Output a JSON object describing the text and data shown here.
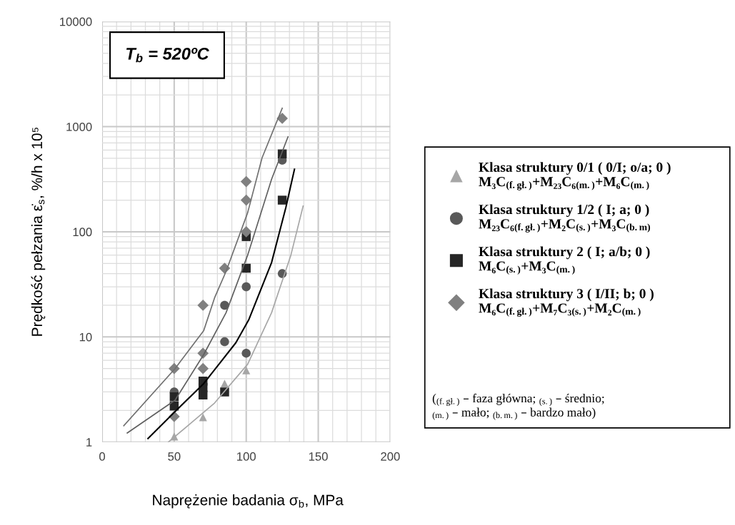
{
  "chart_data": {
    "type": "scatter",
    "xlabel": "Naprężenie badania σ$_{b}$, MPa",
    "ylabel": "Prędkość pełzania ε̇$_{s}$, %/h x 10⁵",
    "annotations": [
      "T$_{b}$ = 520ºC",
      "($_{(f.gł.)}$ – faza główna; $_{(s.)}$ – średnio;\n$_{(m.)}$ – mało; $_{(b.m.)}$ – bardzo mało)"
    ],
    "xlim": [
      0,
      200
    ],
    "xticks": [
      0,
      50,
      100,
      150,
      200
    ],
    "ylim": [
      1,
      10000
    ],
    "yticks": [
      1,
      10,
      100,
      1000,
      10000
    ],
    "log": "y",
    "grid": true,
    "legend": "right",
    "series": [
      {
        "name": "Klasa struktury 0/1 ( 0/I; o/a; 0 )\nM₃C$_{(f.gł.)}$+M₂₃C₆$_{(m.)}$+M₆C$_{(m.)}$",
        "color": "#a6a6a6",
        "marker": "triangle",
        "x": [
          50,
          70,
          85,
          100
        ],
        "values": [
          1.13,
          1.72,
          3.6,
          4.8
        ]
      },
      {
        "name": "Klasa struktury 1/2 ( I; a; 0 )\nM₂₃C₆$_{(f.gł.)}$+M₂C$_{(s.)}$+M₃C$_{(b.m)}$",
        "color": "#595959",
        "marker": "circle",
        "x": [
          50,
          85,
          85,
          100,
          100,
          125,
          125
        ],
        "values": [
          3,
          9,
          20,
          7,
          30,
          40,
          480
        ]
      },
      {
        "name": "Klasa struktury 2 ( I; a/b; 0 )\nM₆C$_{(s.)}$+M₃C$_{(m.)}$",
        "color": "#262626",
        "marker": "square",
        "x": [
          50,
          50,
          70,
          70,
          70,
          85,
          100,
          100,
          125,
          125
        ],
        "values": [
          2.2,
          2.7,
          2.8,
          3.3,
          3.8,
          3,
          45,
          90,
          200,
          550
        ]
      },
      {
        "name": "Klasa struktury 3 ( I/II; b; 0 )\nM₆C$_{(f.gł.)}$+M₇C₃$_{(s.)}$+M₂C$_{(m.)}$",
        "color": "#808080",
        "marker": "diamond",
        "x": [
          50,
          50,
          70,
          70,
          70,
          85,
          100,
          100,
          100,
          125
        ],
        "values": [
          5,
          1.75,
          7,
          5,
          20,
          45,
          100,
          200,
          300,
          1200
        ]
      },
      {
        "type": "line",
        "color": "#707070",
        "x": [
          15,
          50.6,
          70.5,
          78,
          86,
          101,
          111,
          125
        ],
        "values": [
          1.43,
          5,
          11.5,
          23.5,
          42,
          152,
          505,
          1500
        ]
      },
      {
        "type": "line",
        "color": "#606060",
        "x": [
          17.4,
          50.6,
          70.5,
          86,
          101,
          117.6,
          129
        ],
        "values": [
          1.22,
          2.5,
          6.8,
          17,
          60,
          316,
          800
        ]
      },
      {
        "type": "line",
        "color": "#000000",
        "x": [
          31.8,
          50.6,
          70.5,
          92.8,
          101.7,
          117.6,
          127.5,
          133.5
        ],
        "values": [
          1.08,
          1.95,
          3.6,
          8.8,
          14.5,
          51,
          170,
          394
        ]
      },
      {
        "type": "line",
        "color": "#a6a6a6",
        "x": [
          46,
          60,
          78,
          101,
          117.6,
          131,
          139.5
        ],
        "values": [
          1.0,
          1.45,
          2.35,
          5.5,
          17,
          60,
          176
        ]
      }
    ]
  }
}
